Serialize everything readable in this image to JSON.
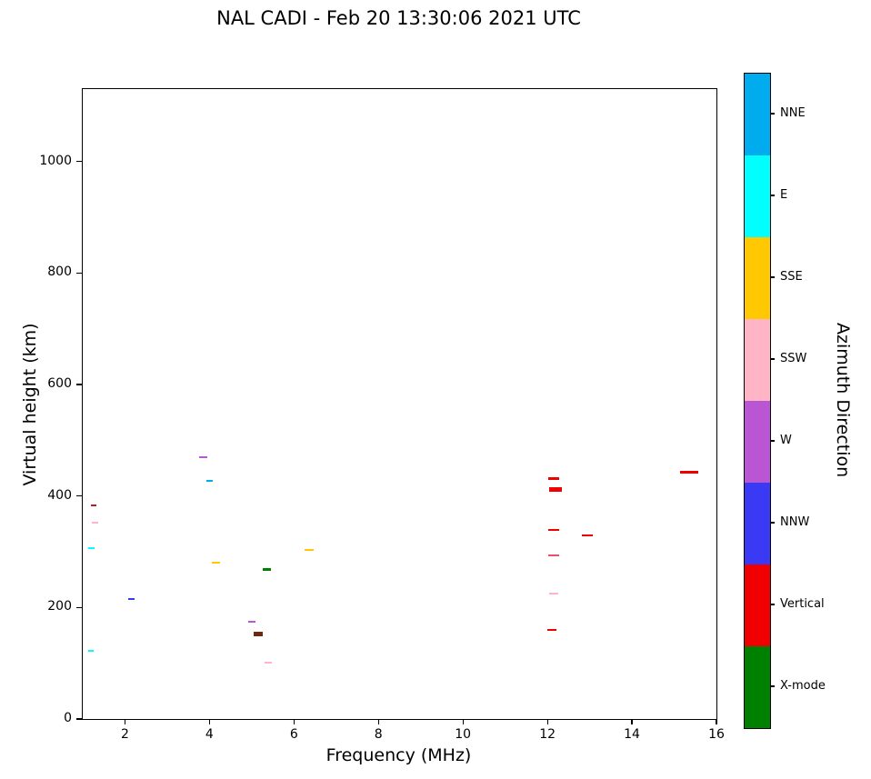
{
  "chart_data": {
    "type": "scatter",
    "title": "NAL CADI - Feb 20 13:30:06 2021 UTC",
    "xlabel": "Frequency (MHz)",
    "ylabel": "Virtual height (km)",
    "xlim": [
      1,
      16
    ],
    "ylim": [
      0,
      1130
    ],
    "xticks": [
      2,
      4,
      6,
      8,
      10,
      12,
      14,
      16
    ],
    "yticks": [
      0,
      200,
      400,
      600,
      800,
      1000
    ],
    "grid": false,
    "marker": "horizontal-dash",
    "legend": {
      "label": "Azimuth Direction",
      "position": "right-colorbar",
      "categories": [
        {
          "name": "NNE",
          "color": "#00ACEE"
        },
        {
          "name": "E",
          "color": "#00FFFF"
        },
        {
          "name": "SSE",
          "color": "#FFC800"
        },
        {
          "name": "SSW",
          "color": "#FFB5C5"
        },
        {
          "name": "W",
          "color": "#BA55D3"
        },
        {
          "name": "NNW",
          "color": "#3A3AF5"
        },
        {
          "name": "Vertical",
          "color": "#F00000"
        },
        {
          "name": "X-mode",
          "color": "#008000"
        }
      ]
    },
    "points": [
      {
        "freq_mhz": 1.2,
        "height_km": 306,
        "direction": "E",
        "dash_w": 7,
        "dash_t": 2
      },
      {
        "freq_mhz": 1.3,
        "height_km": 352,
        "direction": "SSW",
        "dash_w": 7,
        "dash_t": 2
      },
      {
        "freq_mhz": 1.25,
        "height_km": 384,
        "direction": "Vertical",
        "dash_w": 6,
        "dash_t": 2,
        "color": "#B22222"
      },
      {
        "freq_mhz": 1.2,
        "height_km": 122,
        "direction": "E",
        "dash_w": 6,
        "dash_t": 2
      },
      {
        "freq_mhz": 2.15,
        "height_km": 216,
        "direction": "NNW",
        "dash_w": 7,
        "dash_t": 2
      },
      {
        "freq_mhz": 3.85,
        "height_km": 470,
        "direction": "W",
        "dash_w": 9,
        "dash_t": 2
      },
      {
        "freq_mhz": 4.0,
        "height_km": 428,
        "direction": "NNE",
        "dash_w": 7,
        "dash_t": 2
      },
      {
        "freq_mhz": 4.15,
        "height_km": 281,
        "direction": "SSE",
        "dash_w": 9,
        "dash_t": 2
      },
      {
        "freq_mhz": 5.0,
        "height_km": 174,
        "direction": "W",
        "dash_w": 8,
        "dash_t": 2
      },
      {
        "freq_mhz": 5.15,
        "height_km": 152,
        "direction": "Vertical",
        "dash_w": 10,
        "dash_t": 5,
        "color": "#6E2810"
      },
      {
        "freq_mhz": 5.35,
        "height_km": 268,
        "direction": "X-mode",
        "dash_w": 9,
        "dash_t": 3
      },
      {
        "freq_mhz": 5.4,
        "height_km": 101,
        "direction": "SSW",
        "dash_w": 8,
        "dash_t": 2
      },
      {
        "freq_mhz": 6.35,
        "height_km": 303,
        "direction": "SSE",
        "dash_w": 10,
        "dash_t": 2
      },
      {
        "freq_mhz": 12.15,
        "height_km": 432,
        "direction": "Vertical",
        "dash_w": 12,
        "dash_t": 3
      },
      {
        "freq_mhz": 12.2,
        "height_km": 411,
        "direction": "Vertical",
        "dash_w": 14,
        "dash_t": 5
      },
      {
        "freq_mhz": 12.15,
        "height_km": 339,
        "direction": "Vertical",
        "dash_w": 12,
        "dash_t": 2
      },
      {
        "freq_mhz": 12.15,
        "height_km": 293,
        "direction": "Vertical",
        "dash_w": 12,
        "dash_t": 2,
        "color": "#E8506E"
      },
      {
        "freq_mhz": 12.15,
        "height_km": 225,
        "direction": "SSW",
        "dash_w": 10,
        "dash_t": 2
      },
      {
        "freq_mhz": 12.1,
        "height_km": 159,
        "direction": "Vertical",
        "dash_w": 10,
        "dash_t": 2
      },
      {
        "freq_mhz": 12.95,
        "height_km": 330,
        "direction": "Vertical",
        "dash_w": 12,
        "dash_t": 2
      },
      {
        "freq_mhz": 15.35,
        "height_km": 443,
        "direction": "Vertical",
        "dash_w": 20,
        "dash_t": 3
      }
    ]
  }
}
